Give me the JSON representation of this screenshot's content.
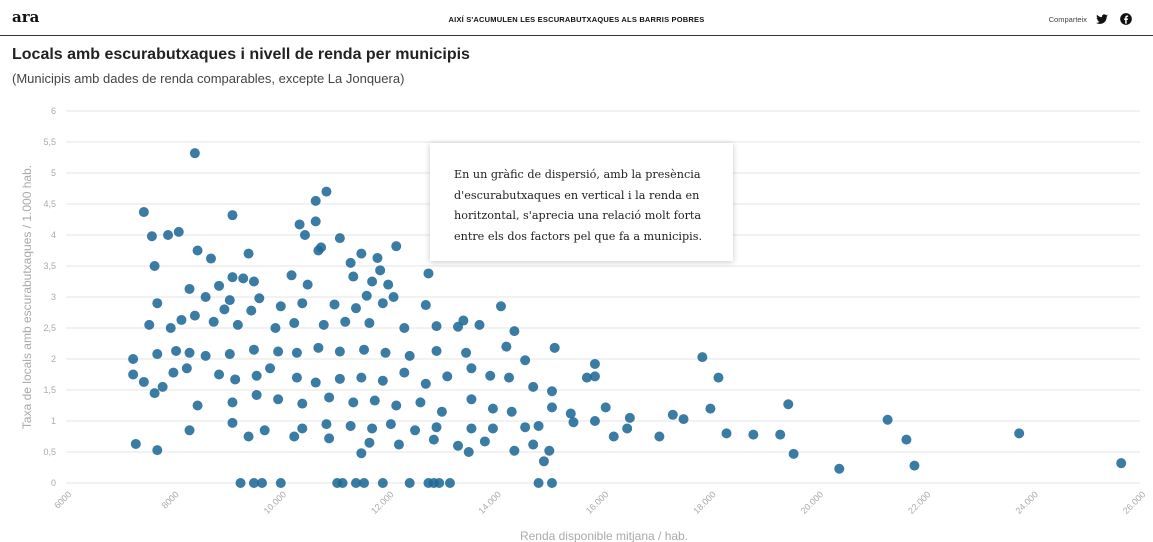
{
  "header": {
    "logo": "ara",
    "title": "AIXÍ S'ACUMULEN LES ESCURABUTXAQUES ALS BARRIS POBRES",
    "share_label": "Comparteix",
    "icons": [
      "twitter-icon",
      "facebook-icon"
    ]
  },
  "article": {
    "headline": "Locals amb escurabutxaques i nivell de renda per municipis",
    "subheadline": "(Municipis amb dades de renda comparables, excepte La Jonquera)",
    "note": "En un gràfic de dispersió, amb la presència d'escurabutxaques en vertical i la renda en horitzontal, s'aprecia una relació molt forta entre els dos factors pel que fa a municipis."
  },
  "chart_data": {
    "type": "scatter",
    "xlabel": "Renda disponible mitjana / hab.",
    "ylabel": "Taxa de locals amb escurabutxaques / 1.000 hab.",
    "xlim": [
      6000,
      26000
    ],
    "ylim": [
      0,
      6
    ],
    "x_ticks": [
      6000,
      8000,
      10000,
      12000,
      14000,
      16000,
      18000,
      20000,
      22000,
      24000,
      26000
    ],
    "x_tick_labels": [
      "6000",
      "8000",
      "10.000",
      "12.000",
      "14.000",
      "16.000",
      "18.000",
      "20.000",
      "22.000",
      "24.000",
      "26.000"
    ],
    "y_ticks": [
      0,
      0.5,
      1,
      1.5,
      2,
      2.5,
      3,
      3.5,
      4,
      4.5,
      5,
      5.5,
      6
    ],
    "y_tick_labels": [
      "0",
      "0,5",
      "1",
      "1,5",
      "2",
      "2,5",
      "3",
      "3,5",
      "4",
      "4,5",
      "5",
      "5,5",
      "6"
    ],
    "grid": "horizontal",
    "point_color": "#1f6a96",
    "points": [
      [
        8400,
        5.32
      ],
      [
        7450,
        4.37
      ],
      [
        9100,
        4.32
      ],
      [
        10850,
        4.7
      ],
      [
        10650,
        4.55
      ],
      [
        7900,
        4.0
      ],
      [
        8100,
        4.05
      ],
      [
        7600,
        3.98
      ],
      [
        10350,
        4.17
      ],
      [
        10650,
        4.22
      ],
      [
        10450,
        4.0
      ],
      [
        11100,
        3.95
      ],
      [
        10750,
        3.8
      ],
      [
        12150,
        3.82
      ],
      [
        8450,
        3.75
      ],
      [
        9400,
        3.7
      ],
      [
        8700,
        3.62
      ],
      [
        10700,
        3.75
      ],
      [
        11500,
        3.7
      ],
      [
        11300,
        3.55
      ],
      [
        7650,
        3.5
      ],
      [
        11800,
        3.63
      ],
      [
        12750,
        3.38
      ],
      [
        11850,
        3.43
      ],
      [
        9100,
        3.32
      ],
      [
        9300,
        3.3
      ],
      [
        9500,
        3.25
      ],
      [
        10200,
        3.35
      ],
      [
        11350,
        3.33
      ],
      [
        8300,
        3.13
      ],
      [
        8850,
        3.18
      ],
      [
        10500,
        3.2
      ],
      [
        11700,
        3.25
      ],
      [
        12000,
        3.2
      ],
      [
        8600,
        3.0
      ],
      [
        9050,
        2.95
      ],
      [
        9600,
        2.98
      ],
      [
        10000,
        2.85
      ],
      [
        11600,
        3.02
      ],
      [
        12100,
        3.0
      ],
      [
        7700,
        2.9
      ],
      [
        8400,
        2.7
      ],
      [
        8950,
        2.8
      ],
      [
        9450,
        2.78
      ],
      [
        10400,
        2.9
      ],
      [
        11000,
        2.88
      ],
      [
        11400,
        2.82
      ],
      [
        11900,
        2.9
      ],
      [
        12700,
        2.87
      ],
      [
        14100,
        2.85
      ],
      [
        7550,
        2.55
      ],
      [
        7950,
        2.5
      ],
      [
        8150,
        2.63
      ],
      [
        8750,
        2.6
      ],
      [
        9200,
        2.55
      ],
      [
        9900,
        2.5
      ],
      [
        10250,
        2.58
      ],
      [
        10800,
        2.55
      ],
      [
        11200,
        2.6
      ],
      [
        11650,
        2.58
      ],
      [
        12300,
        2.5
      ],
      [
        12900,
        2.53
      ],
      [
        13300,
        2.52
      ],
      [
        13700,
        2.55
      ],
      [
        14350,
        2.45
      ],
      [
        13400,
        2.62
      ],
      [
        7250,
        2.0
      ],
      [
        7700,
        2.08
      ],
      [
        8050,
        2.13
      ],
      [
        8300,
        2.1
      ],
      [
        8600,
        2.05
      ],
      [
        9050,
        2.08
      ],
      [
        9500,
        2.15
      ],
      [
        9950,
        2.12
      ],
      [
        10300,
        2.1
      ],
      [
        10700,
        2.18
      ],
      [
        11100,
        2.12
      ],
      [
        11550,
        2.15
      ],
      [
        11950,
        2.1
      ],
      [
        12400,
        2.05
      ],
      [
        12900,
        2.13
      ],
      [
        13450,
        2.1
      ],
      [
        14200,
        2.2
      ],
      [
        14550,
        1.98
      ],
      [
        15100,
        2.18
      ],
      [
        15850,
        1.92
      ],
      [
        7250,
        1.75
      ],
      [
        7450,
        1.63
      ],
      [
        7650,
        1.45
      ],
      [
        7800,
        1.55
      ],
      [
        8000,
        1.78
      ],
      [
        8250,
        1.85
      ],
      [
        8850,
        1.75
      ],
      [
        9150,
        1.67
      ],
      [
        9550,
        1.73
      ],
      [
        9800,
        1.85
      ],
      [
        10300,
        1.7
      ],
      [
        10650,
        1.62
      ],
      [
        11100,
        1.68
      ],
      [
        11500,
        1.7
      ],
      [
        11900,
        1.65
      ],
      [
        12300,
        1.78
      ],
      [
        12700,
        1.6
      ],
      [
        13100,
        1.72
      ],
      [
        13550,
        1.85
      ],
      [
        13900,
        1.73
      ],
      [
        14250,
        1.7
      ],
      [
        14700,
        1.55
      ],
      [
        15050,
        1.48
      ],
      [
        15700,
        1.7
      ],
      [
        15850,
        1.72
      ],
      [
        17850,
        2.03
      ],
      [
        18150,
        1.7
      ],
      [
        8450,
        1.25
      ],
      [
        9100,
        1.3
      ],
      [
        9550,
        1.42
      ],
      [
        9950,
        1.35
      ],
      [
        10400,
        1.28
      ],
      [
        10900,
        1.38
      ],
      [
        11350,
        1.3
      ],
      [
        11750,
        1.33
      ],
      [
        12150,
        1.25
      ],
      [
        12600,
        1.3
      ],
      [
        13000,
        1.15
      ],
      [
        13550,
        1.35
      ],
      [
        13950,
        1.2
      ],
      [
        14300,
        1.15
      ],
      [
        15050,
        1.22
      ],
      [
        15400,
        1.12
      ],
      [
        16050,
        1.22
      ],
      [
        16500,
        1.05
      ],
      [
        17300,
        1.1
      ],
      [
        18000,
        1.2
      ],
      [
        19450,
        1.27
      ],
      [
        9100,
        0.97
      ],
      [
        9700,
        0.85
      ],
      [
        10400,
        0.88
      ],
      [
        10850,
        0.95
      ],
      [
        11300,
        0.92
      ],
      [
        11700,
        0.88
      ],
      [
        12050,
        0.95
      ],
      [
        12500,
        0.85
      ],
      [
        12900,
        0.9
      ],
      [
        13550,
        0.88
      ],
      [
        13950,
        0.88
      ],
      [
        14550,
        0.9
      ],
      [
        14800,
        0.92
      ],
      [
        15450,
        0.98
      ],
      [
        15850,
        1.0
      ],
      [
        16450,
        0.88
      ],
      [
        17500,
        1.03
      ],
      [
        18300,
        0.8
      ],
      [
        18800,
        0.78
      ],
      [
        19300,
        0.78
      ],
      [
        21300,
        1.02
      ],
      [
        8300,
        0.85
      ],
      [
        9400,
        0.75
      ],
      [
        10250,
        0.75
      ],
      [
        10900,
        0.72
      ],
      [
        11650,
        0.65
      ],
      [
        12200,
        0.62
      ],
      [
        12850,
        0.7
      ],
      [
        13300,
        0.6
      ],
      [
        13800,
        0.67
      ],
      [
        14350,
        0.52
      ],
      [
        14700,
        0.62
      ],
      [
        15000,
        0.52
      ],
      [
        16200,
        0.75
      ],
      [
        17050,
        0.75
      ],
      [
        21650,
        0.7
      ],
      [
        23750,
        0.8
      ],
      [
        7300,
        0.63
      ],
      [
        7700,
        0.53
      ],
      [
        11500,
        0.48
      ],
      [
        13500,
        0.5
      ],
      [
        14900,
        0.35
      ],
      [
        19550,
        0.47
      ],
      [
        20400,
        0.23
      ],
      [
        21800,
        0.28
      ],
      [
        25650,
        0.32
      ],
      [
        9250,
        0.0
      ],
      [
        9500,
        0.0
      ],
      [
        9650,
        0.0
      ],
      [
        10000,
        0.0
      ],
      [
        11050,
        0.0
      ],
      [
        11150,
        0.0
      ],
      [
        11400,
        0.0
      ],
      [
        11550,
        0.0
      ],
      [
        11900,
        0.0
      ],
      [
        12400,
        0.0
      ],
      [
        12750,
        0.0
      ],
      [
        12850,
        0.0
      ],
      [
        12950,
        0.0
      ],
      [
        13150,
        0.0
      ],
      [
        14800,
        0.0
      ],
      [
        15050,
        0.0
      ]
    ]
  }
}
